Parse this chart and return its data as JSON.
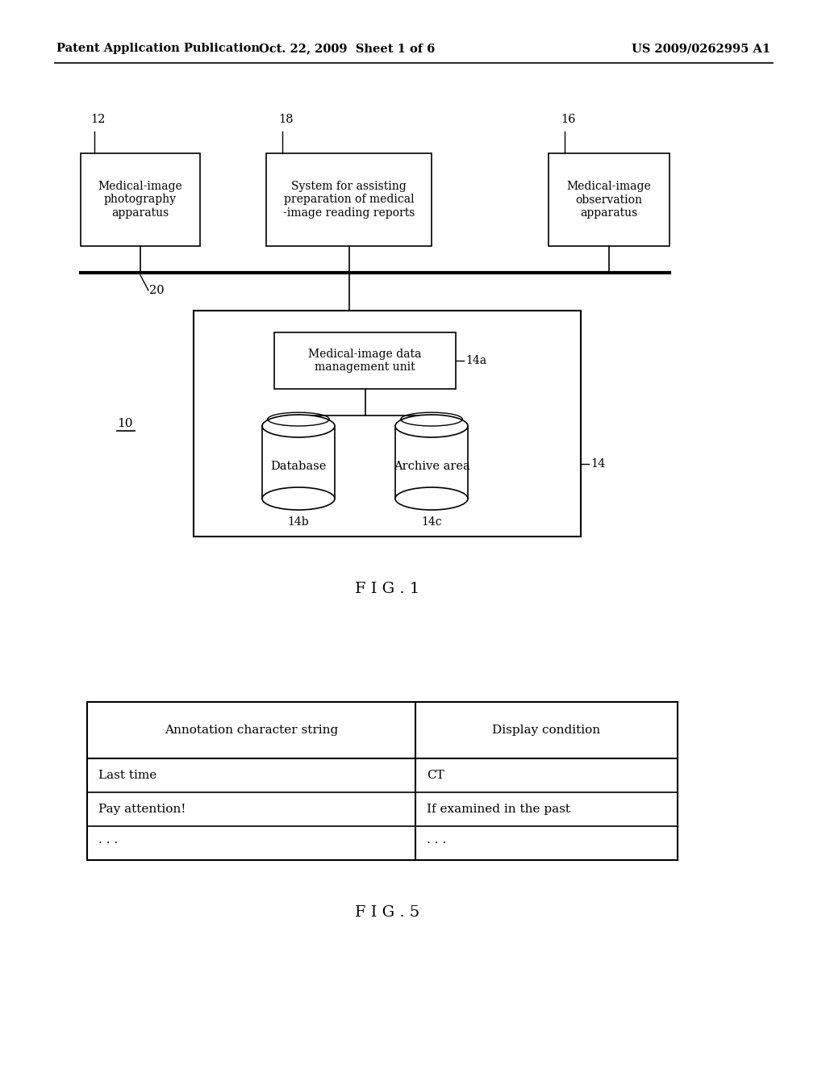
{
  "bg_color": "#ffffff",
  "header_text_left": "Patent Application Publication",
  "header_text_mid": "Oct. 22, 2009  Sheet 1 of 6",
  "header_text_right": "US 2009/0262995 A1",
  "fig1_label": "F I G . 1",
  "fig5_label": "F I G . 5",
  "box12_label": "12",
  "box18_label": "18",
  "box16_label": "16",
  "box12_text": "Medical-image\nphotography\napparatus",
  "box18_text": "System for assisting\npreparation of medical\n-image reading reports",
  "box16_text": "Medical-image\nobservation\napparatus",
  "label20": "20",
  "label10": "10",
  "label14a": "14a",
  "label14": "14",
  "label14b": "14b",
  "label14c": "14c",
  "mgmt_text": "Medical-image data\nmanagement unit",
  "db_text": "Database",
  "archive_text": "Archive area",
  "table_col1_header": "Annotation character string",
  "table_col2_header": "Display condition",
  "table_rows": [
    [
      "Last time",
      "CT"
    ],
    [
      "Pay attention!",
      "If examined in the past"
    ],
    [
      "· · ·",
      "· · ·"
    ]
  ]
}
